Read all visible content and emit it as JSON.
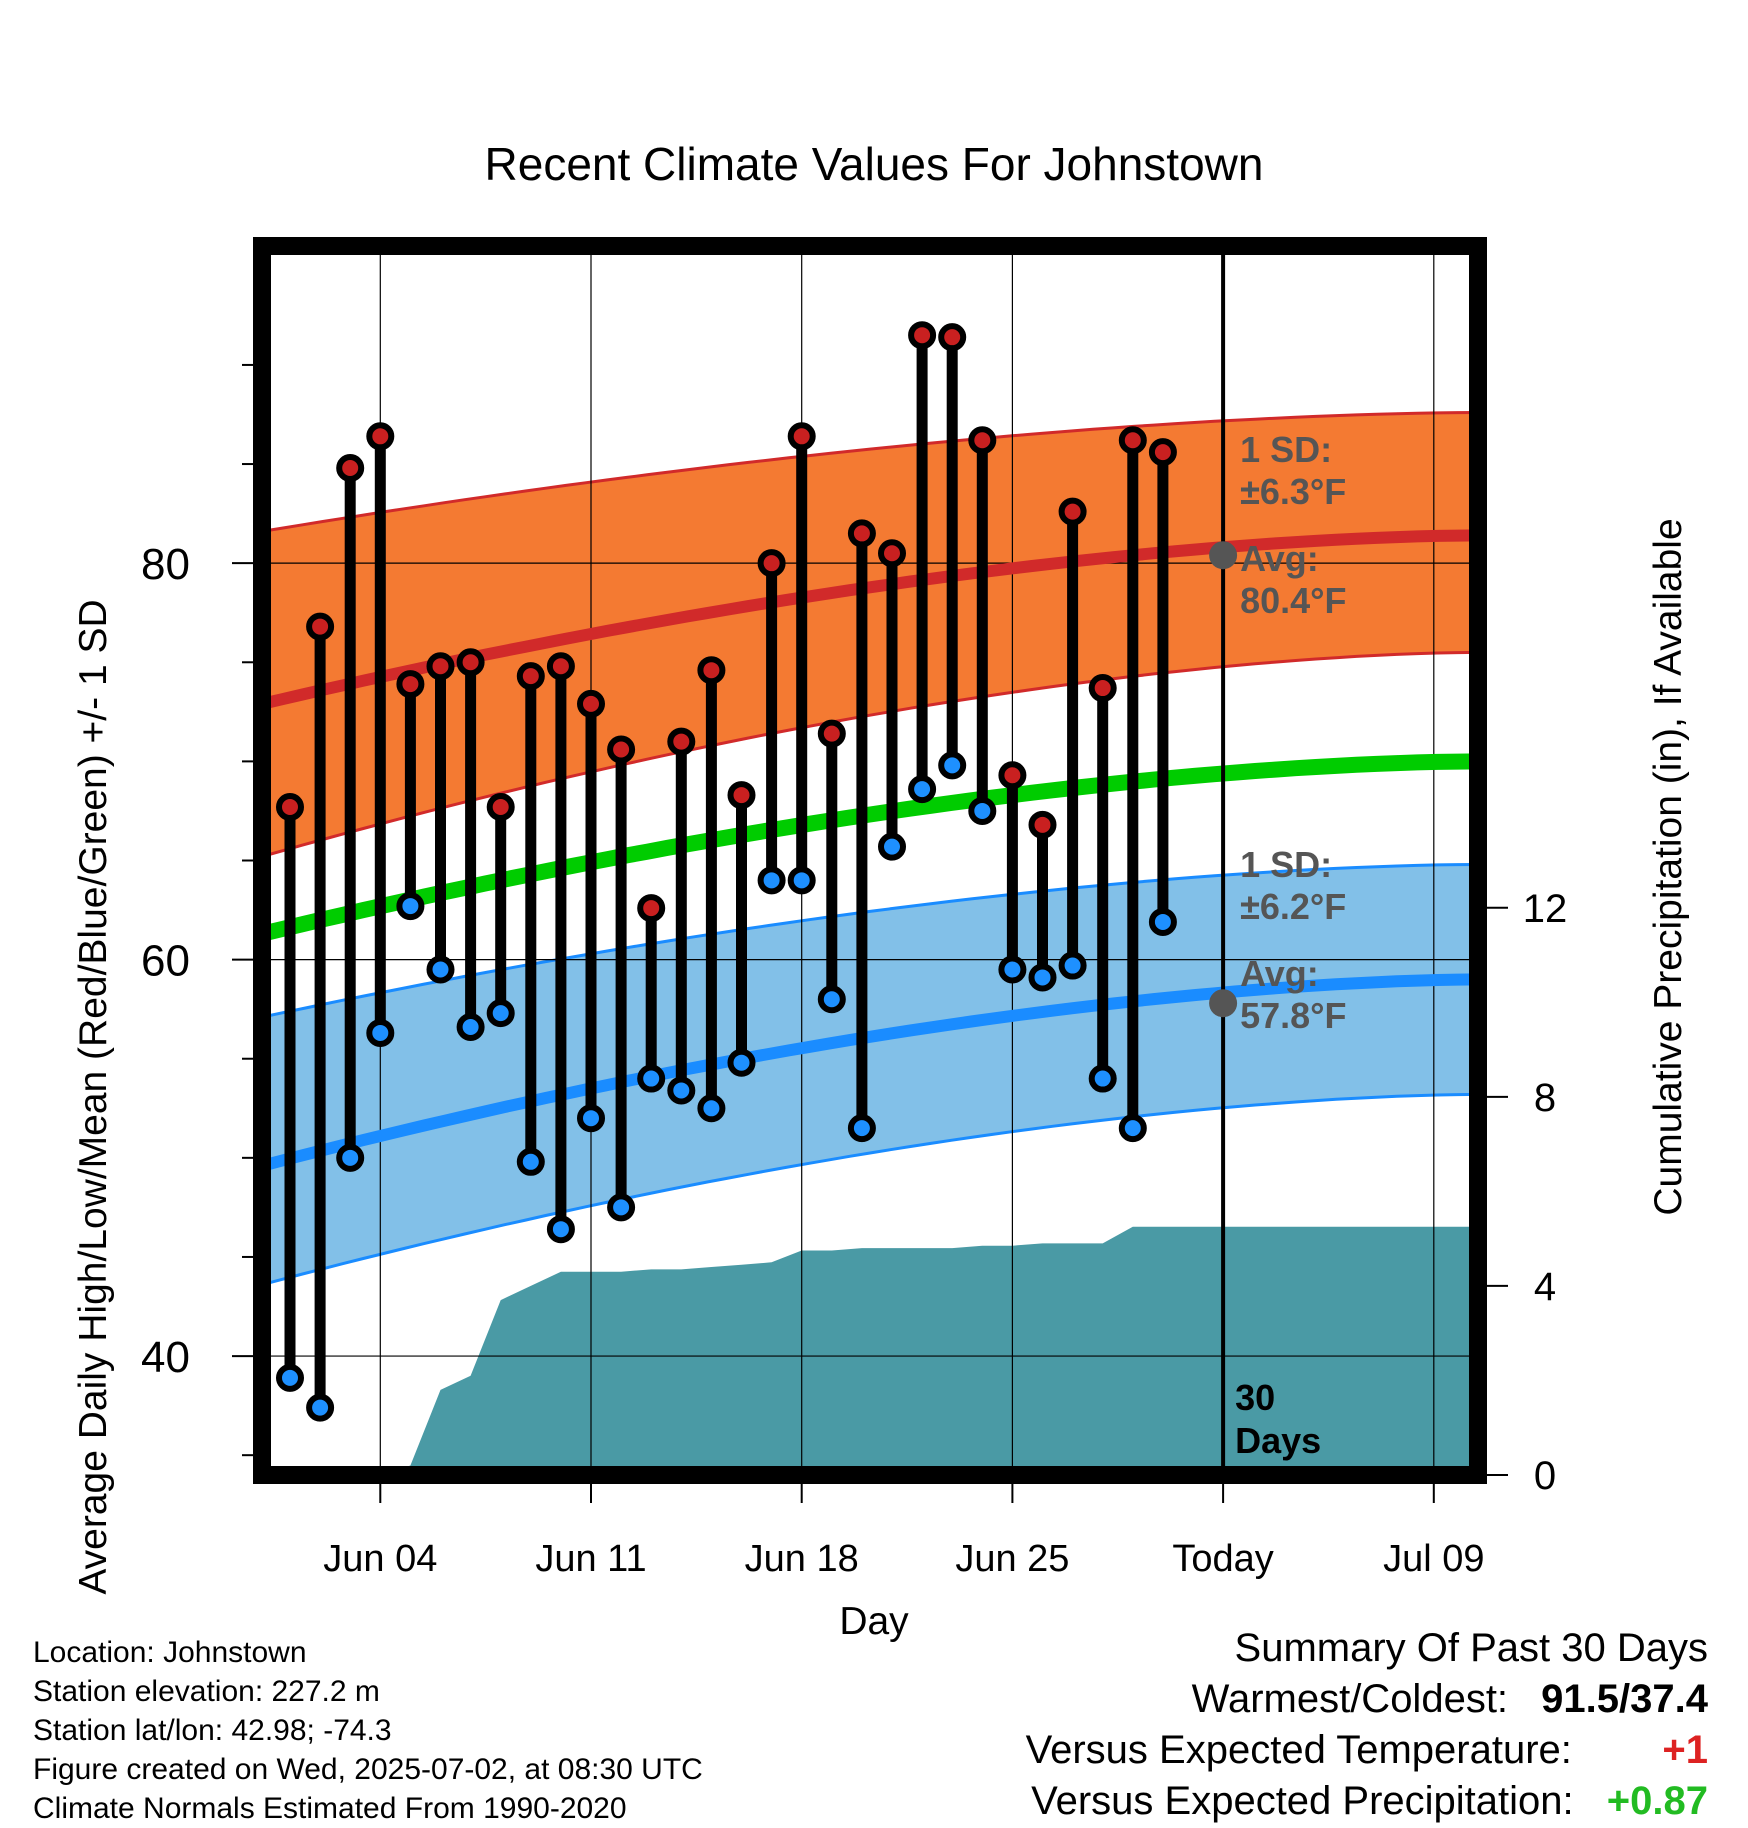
{
  "chart_data": {
    "type": "line",
    "title": "Recent Climate Values For Johnstown",
    "xlabel": "Day",
    "ylabel": "Average Daily High/Low/Mean (Red/Blue/Green) +/- 1 SD",
    "y2label": "Cumulative Precipitation (in), If Available",
    "x_tick_labels": [
      "Jun 04",
      "Jun 11",
      "Jun 18",
      "Jun 25",
      "Today",
      "Jul 09"
    ],
    "x_range": [
      "Jun 01",
      "Jul 12"
    ],
    "ylim": [
      34,
      96
    ],
    "y_ticks": [
      40,
      60,
      80
    ],
    "y2lim": [
      0,
      26
    ],
    "y2_ticks": [
      0,
      4,
      8,
      12
    ],
    "grid": true,
    "today": "Jul 02",
    "today_label": [
      "30",
      "Days"
    ],
    "high_avg": {
      "start": 72.9,
      "end": 81.4
    },
    "high_sd": {
      "lower_start": 65.2,
      "lower_end": 75.5,
      "upper_start": 81.6,
      "upper_end": 87.6
    },
    "low_avg": {
      "start": 49.6,
      "end": 59.0
    },
    "low_sd": {
      "lower_start": 43.6,
      "lower_end": 53.2,
      "upper_start": 57.1,
      "upper_end": 64.8
    },
    "mean_avg": {
      "start": 61.3,
      "end": 70.0
    },
    "daily_highs": [
      67.7,
      76.8,
      84.8,
      86.4,
      73.9,
      74.8,
      75.0,
      67.7,
      74.3,
      74.8,
      72.9,
      70.6,
      62.6,
      71.0,
      74.6,
      68.3,
      80.0,
      86.4,
      71.4,
      81.5,
      80.5,
      91.5,
      91.4,
      86.2,
      69.3,
      66.8,
      82.6,
      73.7,
      86.2,
      85.6
    ],
    "daily_lows": [
      38.9,
      37.4,
      50.0,
      56.3,
      62.7,
      59.5,
      56.6,
      57.3,
      49.8,
      46.4,
      52.0,
      47.5,
      54.0,
      53.4,
      52.5,
      54.8,
      64.0,
      64.0,
      58.0,
      51.5,
      65.7,
      68.6,
      69.8,
      67.5,
      59.5,
      59.1,
      59.7,
      54.0,
      51.5,
      61.9
    ],
    "cumulative_precip": [
      0,
      0,
      0,
      0,
      0.2,
      1.8,
      2.1,
      3.7,
      4.0,
      4.3,
      4.3,
      4.3,
      4.35,
      4.35,
      4.4,
      4.45,
      4.5,
      4.75,
      4.75,
      4.8,
      4.8,
      4.8,
      4.8,
      4.85,
      4.85,
      4.9,
      4.9,
      4.9,
      5.25,
      5.25
    ],
    "precip_after_today": 5.25,
    "annotations": {
      "high_sd_label": [
        "1 SD:",
        "±6.3°F"
      ],
      "high_avg_label": [
        "Avg:",
        "80.4°F"
      ],
      "low_sd_label": [
        "1 SD:",
        "±6.2°F"
      ],
      "low_avg_label": [
        "Avg:",
        "57.8°F"
      ],
      "high_today_avg": 80.4,
      "low_today_avg": 57.8
    },
    "colors": {
      "high_band": "#f47a32",
      "high_line": "#d12a2a",
      "low_band": "#82c0e8",
      "low_line": "#1a8cff",
      "mean_line": "#00cc00",
      "precip": "#4a9aa5",
      "high_dot": "#c92020",
      "low_dot": "#1e90ff",
      "annotation": "#555555"
    }
  },
  "footer": {
    "location": "Location: Johnstown",
    "elevation": "Station elevation: 227.2 m",
    "latlon": "Station lat/lon: 42.98; -74.3",
    "created": "Figure created on Wed, 2025-07-02, at 08:30 UTC",
    "normals": "Climate Normals Estimated From 1990-2020"
  },
  "summary": {
    "title": "Summary Of Past 30 Days",
    "warmest_label": "Warmest/Coldest:",
    "warmest_value": "91.5/37.4",
    "temp_label": "Versus Expected Temperature:",
    "temp_value": "+1",
    "temp_color": "#dd2222",
    "precip_label": "Versus Expected Precipitation:",
    "precip_value": "+0.87",
    "precip_color": "#22bb22"
  }
}
